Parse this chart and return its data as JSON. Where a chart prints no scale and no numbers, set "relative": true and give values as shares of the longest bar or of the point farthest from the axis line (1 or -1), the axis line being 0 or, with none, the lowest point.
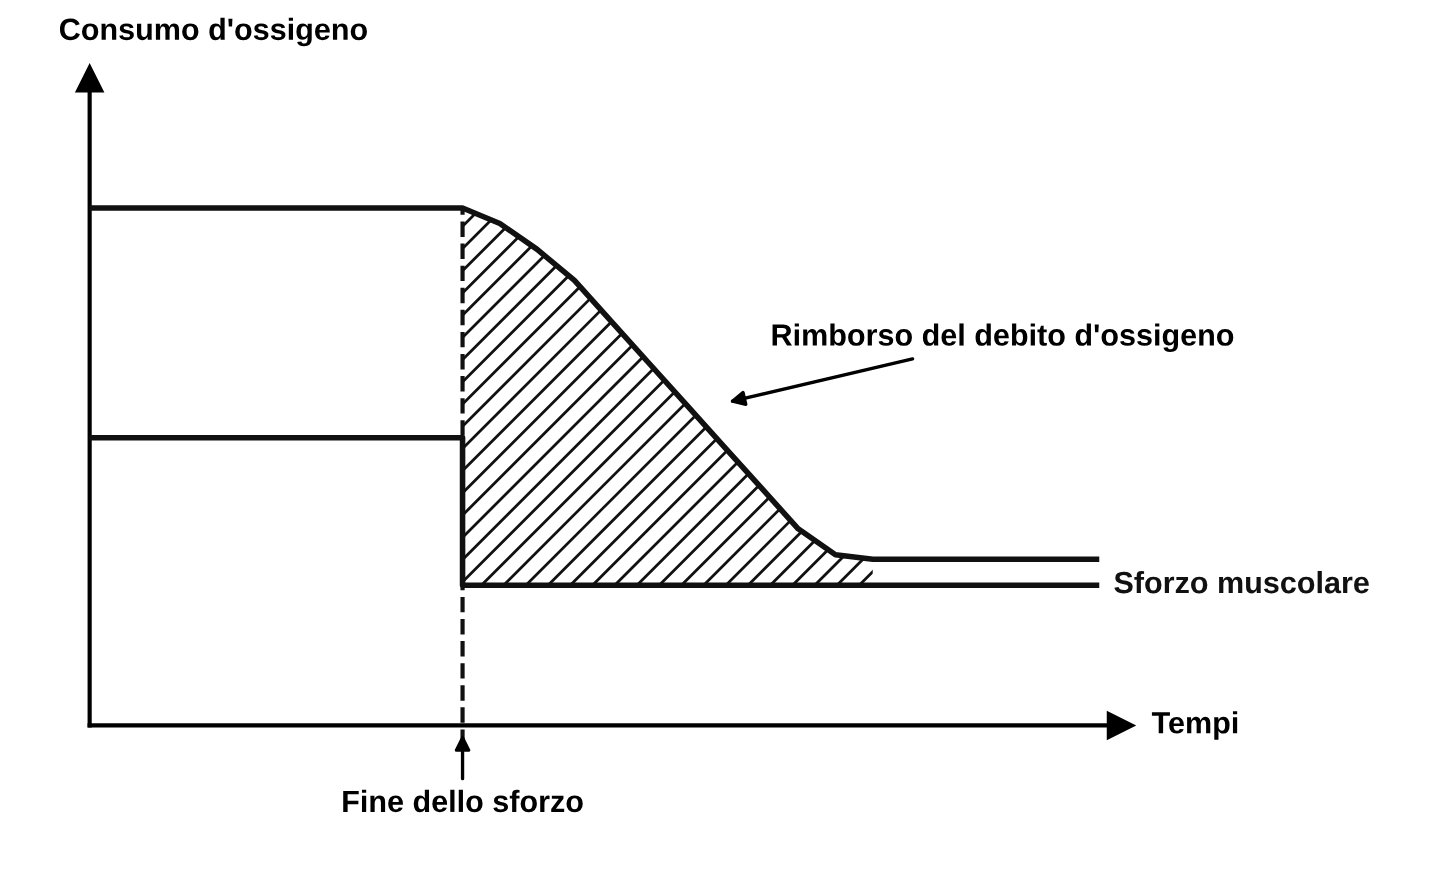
{
  "chart_data": {
    "type": "line",
    "relative": true,
    "xlabel": "Tempi",
    "line_style": "solid",
    "categories": [
      null,
      null,
      null,
      null,
      null,
      null,
      null,
      null,
      null,
      null,
      null,
      null,
      null,
      null,
      null,
      null,
      null,
      null,
      null,
      null,
      null,
      null,
      null,
      null,
      null,
      null,
      null,
      null
    ],
    "series": [
      {
        "color": "#111111",
        "values": [
          1,
          1,
          1,
          1,
          1,
          1,
          1,
          1,
          1,
          1,
          1,
          0.97,
          0.92,
          0.86,
          0.78,
          0.7,
          0.62,
          0.54,
          0.46,
          0.38,
          0.33,
          0.321,
          0.321,
          0.321,
          0.321,
          0.321,
          0.321,
          0.321
        ],
        "lower": [
          null,
          null,
          null,
          null,
          null,
          null,
          null,
          null,
          null,
          null,
          0.271,
          0.271,
          0.271,
          0.271,
          0.271,
          0.271,
          0.271,
          0.271,
          0.271,
          0.271,
          0.271,
          0.271,
          null,
          null,
          null,
          null,
          null,
          null
        ],
        "upper": [
          null,
          null,
          null,
          null,
          null,
          null,
          null,
          null,
          null,
          null,
          1,
          0.97,
          0.92,
          0.86,
          0.78,
          0.7,
          0.62,
          0.54,
          0.46,
          0.38,
          0.33,
          0.321,
          null,
          null,
          null,
          null,
          null,
          null
        ]
      },
      {
        "name": "Sforzo muscolare",
        "type": "step",
        "color": "#111111",
        "values": [
          0.556,
          0.556,
          0.556,
          0.556,
          0.556,
          0.556,
          0.556,
          0.556,
          0.556,
          0.556,
          0.271,
          0.271,
          0.271,
          0.271,
          0.271,
          0.271,
          0.271,
          0.271,
          0.271,
          0.271,
          0.271,
          0.271,
          0.271,
          0.271,
          0.271,
          0.271,
          0.271,
          0.271
        ]
      }
    ],
    "annotations": [
      "Fine dello sforzo",
      "Rimborso del debito d'ossigeno",
      "Consumo d'ossigeno"
    ]
  }
}
